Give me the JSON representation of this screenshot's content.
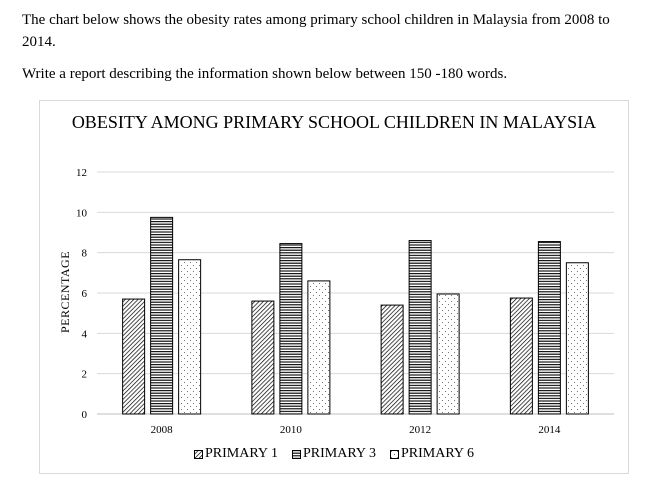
{
  "prompt": {
    "line1": "The chart below shows the obesity rates among primary school children in Malaysia from 2008 to 2014.",
    "instruction": "Write a report describing the information shown below between 150 -180 words."
  },
  "chart_data": {
    "type": "bar",
    "title": "OBESITY AMONG PRIMARY SCHOOL CHILDREN IN MALAYSIA",
    "xlabel": "",
    "ylabel": "PERCENTAGE",
    "categories": [
      "2008",
      "2010",
      "2012",
      "2014"
    ],
    "ylim": [
      0,
      12
    ],
    "yticks": [
      0,
      2,
      4,
      6,
      8,
      10,
      12
    ],
    "grid": true,
    "legend_position": "bottom",
    "series": [
      {
        "name": "PRIMARY 1",
        "values": [
          5.7,
          5.6,
          5.4,
          5.75
        ],
        "pattern": "diagonal-hatch"
      },
      {
        "name": "PRIMARY 3",
        "values": [
          9.75,
          8.45,
          8.6,
          8.55
        ],
        "pattern": "horizontal-lines"
      },
      {
        "name": "PRIMARY 6",
        "values": [
          7.65,
          6.6,
          5.95,
          7.5
        ],
        "pattern": "dots"
      }
    ],
    "colors": {
      "bar_stroke": "#000000",
      "grid": "#d9d9d9",
      "axis": "#bfbfbf"
    }
  }
}
